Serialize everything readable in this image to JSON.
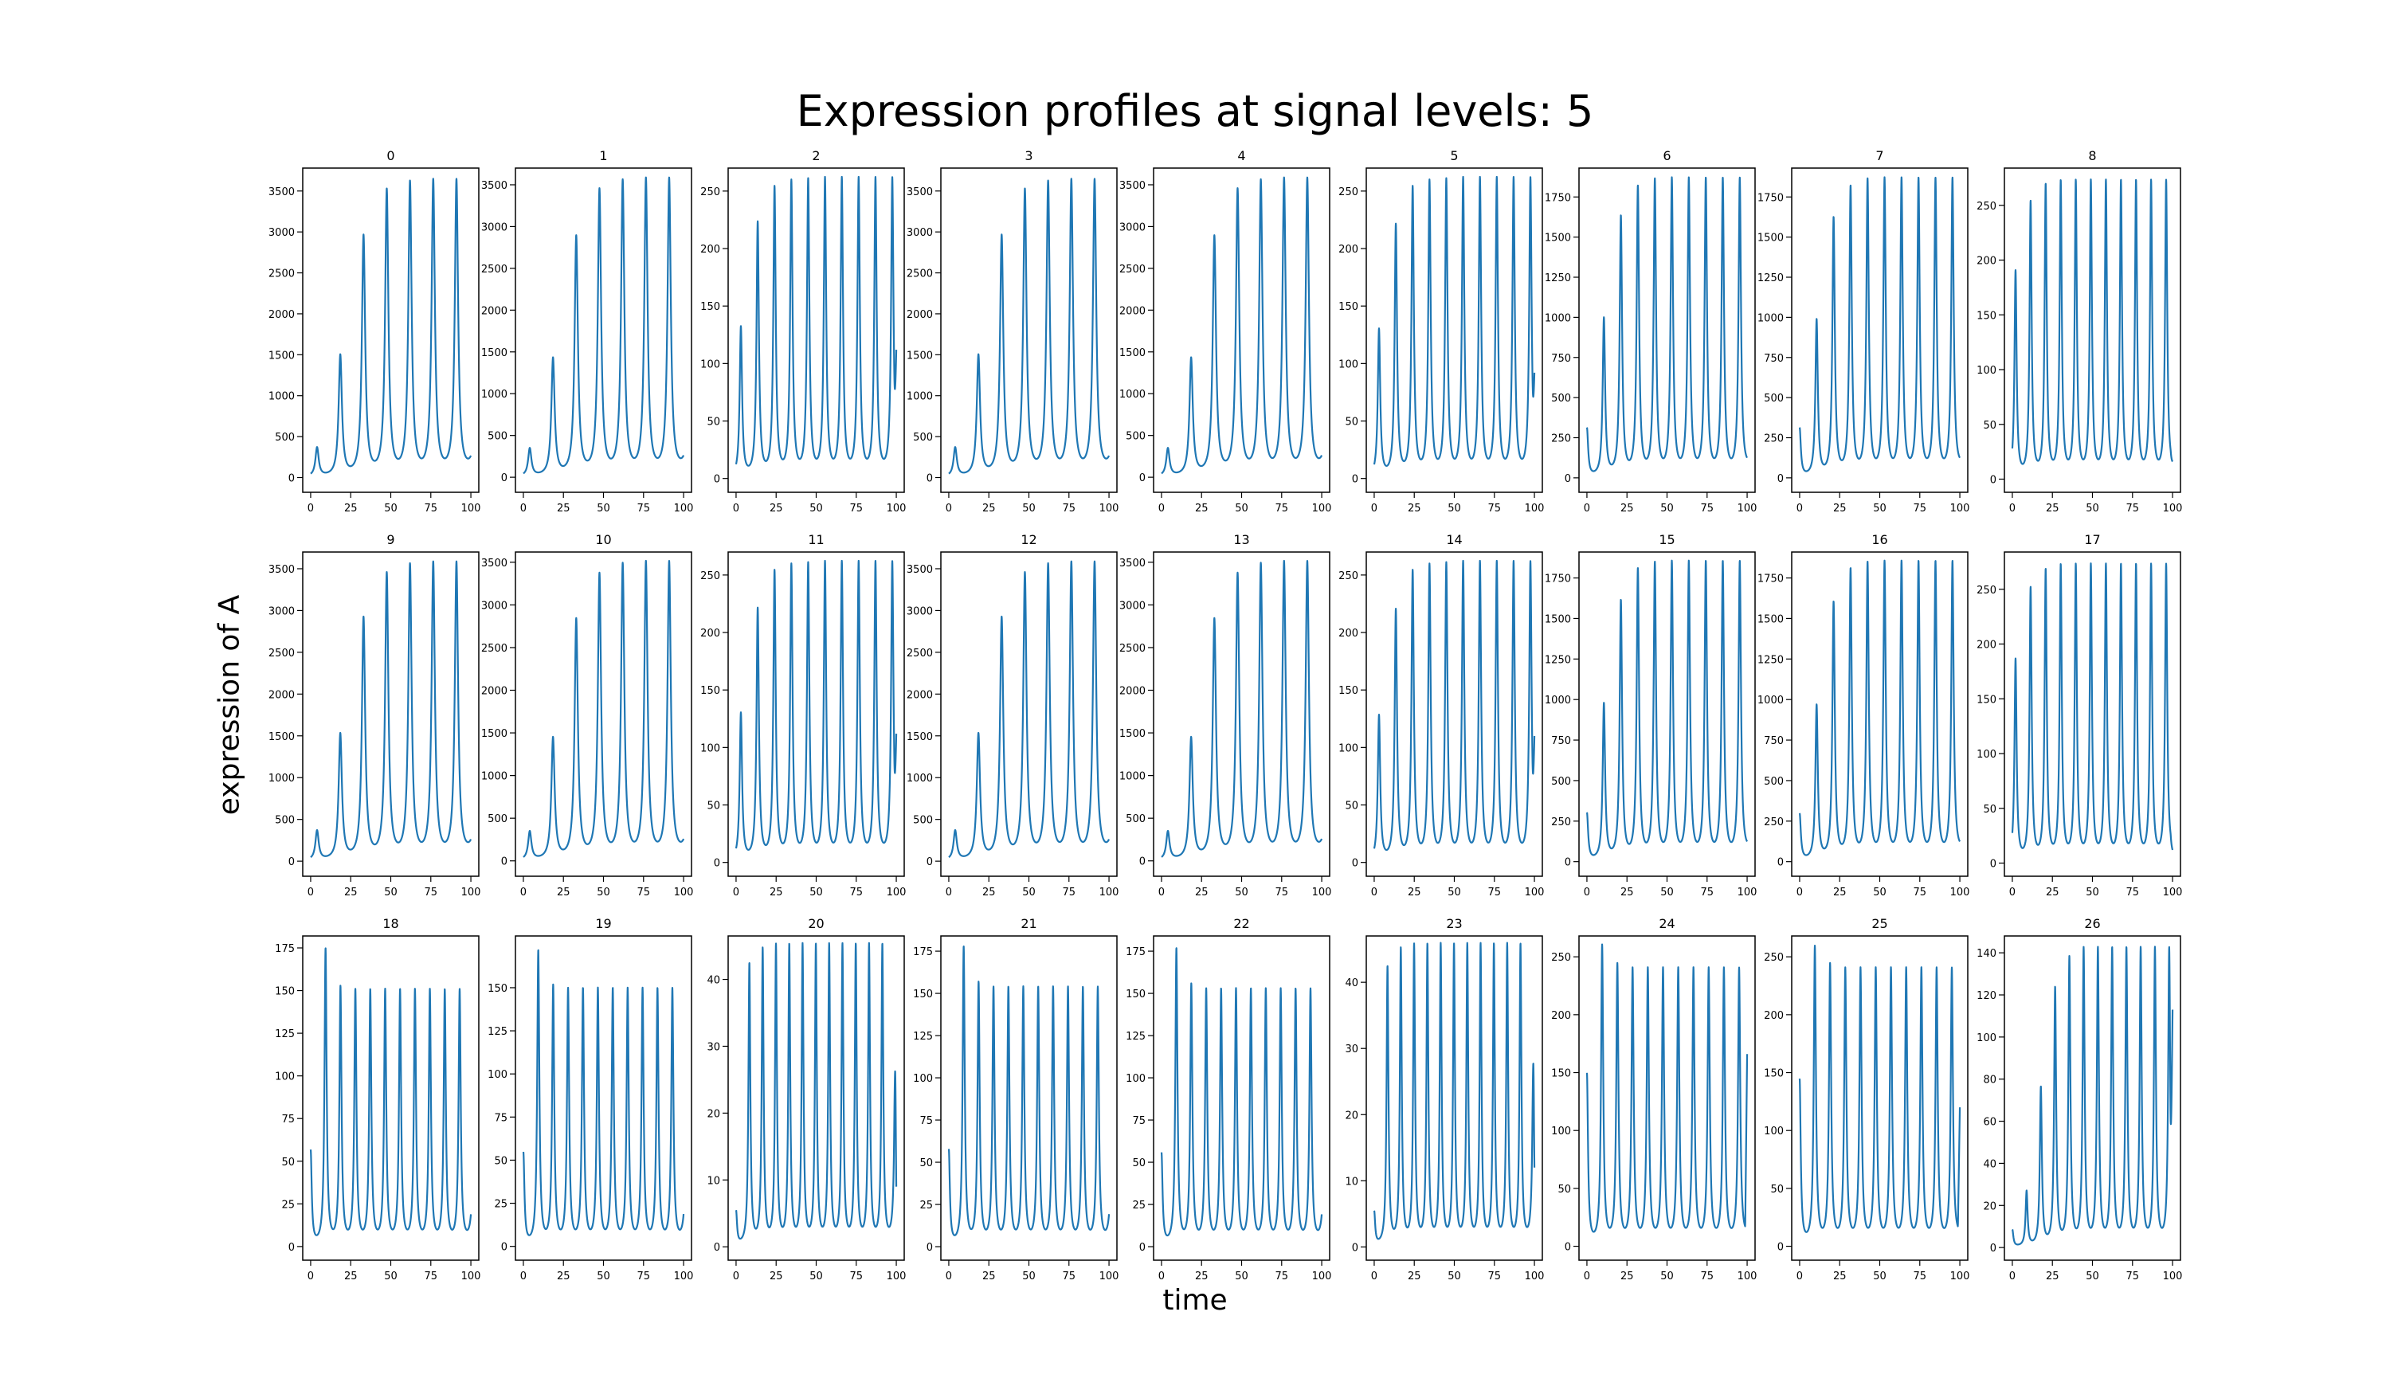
{
  "figure": {
    "title": "Expression profiles at signal levels: 5",
    "xlabel": "time",
    "ylabel": "expression of A",
    "line_color": "#1f77b4"
  },
  "chart_data": [
    {
      "type": "line",
      "title": "0",
      "xlim": [
        0,
        100
      ],
      "xticks": [
        0,
        25,
        50,
        75,
        100
      ],
      "yticks": [
        0,
        500,
        1000,
        1500,
        2000,
        2500,
        3000,
        3500
      ],
      "ylim": [
        -180,
        3780
      ],
      "period": 14.5,
      "phase": 4,
      "peaks": [
        350,
        1470,
        2920,
        3470,
        3560,
        3580,
        3580
      ],
      "tail": null
    },
    {
      "type": "line",
      "title": "1",
      "xlim": [
        0,
        100
      ],
      "xticks": [
        0,
        25,
        50,
        75,
        100
      ],
      "yticks": [
        0,
        500,
        1000,
        1500,
        2000,
        2500,
        3000,
        3500
      ],
      "ylim": [
        -180,
        3700
      ],
      "period": 14.5,
      "phase": 4,
      "peaks": [
        330,
        1400,
        2850,
        3400,
        3500,
        3520,
        3520
      ],
      "tail": null
    },
    {
      "type": "line",
      "title": "2",
      "xlim": [
        0,
        100
      ],
      "xticks": [
        0,
        25,
        50,
        75,
        100
      ],
      "yticks": [
        0,
        50,
        100,
        150,
        200,
        250
      ],
      "ylim": [
        -12,
        270
      ],
      "period": 10.5,
      "phase": 3,
      "peaks": [
        130,
        220,
        250,
        255,
        256,
        257,
        257,
        257,
        257
      ],
      "tail": 112
    },
    {
      "type": "line",
      "title": "3",
      "xlim": [
        0,
        100
      ],
      "xticks": [
        0,
        25,
        50,
        75,
        100
      ],
      "yticks": [
        0,
        500,
        1000,
        1500,
        2000,
        2500,
        3000,
        3500
      ],
      "ylim": [
        -180,
        3780
      ],
      "period": 14.5,
      "phase": 4,
      "peaks": [
        350,
        1470,
        2920,
        3470,
        3560,
        3580,
        3580
      ],
      "tail": null
    },
    {
      "type": "line",
      "title": "4",
      "xlim": [
        0,
        100
      ],
      "xticks": [
        0,
        25,
        50,
        75,
        100
      ],
      "yticks": [
        0,
        500,
        1000,
        1500,
        2000,
        2500,
        3000,
        3500
      ],
      "ylim": [
        -180,
        3700
      ],
      "period": 14.5,
      "phase": 4,
      "peaks": [
        330,
        1400,
        2850,
        3400,
        3500,
        3520,
        3520
      ],
      "tail": null
    },
    {
      "type": "line",
      "title": "5",
      "xlim": [
        0,
        100
      ],
      "xticks": [
        0,
        25,
        50,
        75,
        100
      ],
      "yticks": [
        0,
        50,
        100,
        150,
        200,
        250
      ],
      "ylim": [
        -12,
        270
      ],
      "period": 10.5,
      "phase": 3,
      "peaks": [
        128,
        218,
        250,
        255,
        256,
        257,
        257,
        257,
        257
      ],
      "tail": 92
    },
    {
      "type": "line",
      "title": "6",
      "xlim": [
        0,
        100
      ],
      "xticks": [
        0,
        25,
        50,
        75,
        100
      ],
      "yticks": [
        0,
        250,
        500,
        750,
        1000,
        1250,
        1500,
        1750
      ],
      "ylim": [
        -90,
        1930
      ],
      "period": 10.6,
      "phase": 0,
      "peaks": [
        300,
        980,
        1610,
        1790,
        1830,
        1835,
        1835,
        1835,
        1835,
        1835
      ],
      "tail": null
    },
    {
      "type": "line",
      "title": "7",
      "xlim": [
        0,
        100
      ],
      "xticks": [
        0,
        25,
        50,
        75,
        100
      ],
      "yticks": [
        0,
        250,
        500,
        750,
        1000,
        1250,
        1500,
        1750
      ],
      "ylim": [
        -90,
        1930
      ],
      "period": 10.6,
      "phase": 0,
      "peaks": [
        300,
        970,
        1600,
        1790,
        1830,
        1835,
        1835,
        1835,
        1835,
        1835
      ],
      "tail": null
    },
    {
      "type": "line",
      "title": "8",
      "xlim": [
        0,
        100
      ],
      "xticks": [
        0,
        25,
        50,
        75,
        100
      ],
      "yticks": [
        0,
        50,
        100,
        150,
        200,
        250
      ],
      "ylim": [
        -12,
        284
      ],
      "period": 9.4,
      "phase": 2,
      "peaks": [
        188,
        250,
        265,
        268,
        268,
        268,
        268,
        268,
        268,
        268
      ],
      "tail": 16
    },
    {
      "type": "line",
      "title": "9",
      "xlim": [
        0,
        100
      ],
      "xticks": [
        0,
        25,
        50,
        75,
        100
      ],
      "yticks": [
        0,
        500,
        1000,
        1500,
        2000,
        2500,
        3000,
        3500
      ],
      "ylim": [
        -180,
        3700
      ],
      "period": 14.5,
      "phase": 4,
      "peaks": [
        350,
        1500,
        2880,
        3400,
        3500,
        3520,
        3520
      ],
      "tail": null
    },
    {
      "type": "line",
      "title": "10",
      "xlim": [
        0,
        100
      ],
      "xticks": [
        0,
        25,
        50,
        75,
        100
      ],
      "yticks": [
        0,
        500,
        1000,
        1500,
        2000,
        2500,
        3000,
        3500
      ],
      "ylim": [
        -180,
        3620
      ],
      "period": 14.5,
      "phase": 4,
      "peaks": [
        330,
        1420,
        2800,
        3320,
        3430,
        3450,
        3450
      ],
      "tail": null
    },
    {
      "type": "line",
      "title": "11",
      "xlim": [
        0,
        100
      ],
      "xticks": [
        0,
        25,
        50,
        75,
        100
      ],
      "yticks": [
        0,
        50,
        100,
        150,
        200,
        250
      ],
      "ylim": [
        -12,
        270
      ],
      "period": 10.5,
      "phase": 3,
      "peaks": [
        128,
        218,
        250,
        255,
        256,
        257,
        257,
        257,
        257
      ],
      "tail": 112
    },
    {
      "type": "line",
      "title": "12",
      "xlim": [
        0,
        100
      ],
      "xticks": [
        0,
        25,
        50,
        75,
        100
      ],
      "yticks": [
        0,
        500,
        1000,
        1500,
        2000,
        2500,
        3000,
        3500
      ],
      "ylim": [
        -180,
        3700
      ],
      "period": 14.5,
      "phase": 4,
      "peaks": [
        350,
        1500,
        2880,
        3400,
        3500,
        3520,
        3520
      ],
      "tail": null
    },
    {
      "type": "line",
      "title": "13",
      "xlim": [
        0,
        100
      ],
      "xticks": [
        0,
        25,
        50,
        75,
        100
      ],
      "yticks": [
        0,
        500,
        1000,
        1500,
        2000,
        2500,
        3000,
        3500
      ],
      "ylim": [
        -180,
        3620
      ],
      "period": 14.5,
      "phase": 4,
      "peaks": [
        330,
        1420,
        2800,
        3320,
        3430,
        3450,
        3450
      ],
      "tail": null
    },
    {
      "type": "line",
      "title": "14",
      "xlim": [
        0,
        100
      ],
      "xticks": [
        0,
        25,
        50,
        75,
        100
      ],
      "yticks": [
        0,
        50,
        100,
        150,
        200,
        250
      ],
      "ylim": [
        -12,
        270
      ],
      "period": 10.5,
      "phase": 3,
      "peaks": [
        126,
        217,
        250,
        255,
        256,
        257,
        257,
        257,
        257
      ],
      "tail": 110
    },
    {
      "type": "line",
      "title": "15",
      "xlim": [
        0,
        100
      ],
      "xticks": [
        0,
        25,
        50,
        75,
        100
      ],
      "yticks": [
        0,
        250,
        500,
        750,
        1000,
        1250,
        1500,
        1750
      ],
      "ylim": [
        -90,
        1910
      ],
      "period": 10.6,
      "phase": 0,
      "peaks": [
        290,
        960,
        1590,
        1780,
        1815,
        1820,
        1820,
        1820,
        1820,
        1820
      ],
      "tail": null
    },
    {
      "type": "line",
      "title": "16",
      "xlim": [
        0,
        100
      ],
      "xticks": [
        0,
        25,
        50,
        75,
        100
      ],
      "yticks": [
        0,
        250,
        500,
        750,
        1000,
        1250,
        1500,
        1750
      ],
      "ylim": [
        -90,
        1910
      ],
      "period": 10.6,
      "phase": 0,
      "peaks": [
        285,
        950,
        1580,
        1780,
        1815,
        1820,
        1820,
        1820,
        1820,
        1820
      ],
      "tail": null
    },
    {
      "type": "line",
      "title": "17",
      "xlim": [
        0,
        100
      ],
      "xticks": [
        0,
        25,
        50,
        75,
        100
      ],
      "yticks": [
        0,
        50,
        100,
        150,
        200,
        250
      ],
      "ylim": [
        -12,
        284
      ],
      "period": 9.4,
      "phase": 2,
      "peaks": [
        184,
        248,
        264,
        268,
        268,
        268,
        268,
        268,
        268,
        268
      ],
      "tail": 12
    },
    {
      "type": "line",
      "title": "18",
      "xlim": [
        0,
        100
      ],
      "xticks": [
        0,
        25,
        50,
        75,
        100
      ],
      "yticks": [
        0,
        25,
        50,
        75,
        100,
        125,
        150,
        175
      ],
      "ylim": [
        -8,
        182
      ],
      "period": 9.3,
      "phase": 0,
      "peaks": [
        55,
        173,
        150,
        148,
        148,
        148,
        148,
        148,
        148,
        148,
        148
      ],
      "tail": null
    },
    {
      "type": "line",
      "title": "19",
      "xlim": [
        0,
        100
      ],
      "xticks": [
        0,
        25,
        50,
        75,
        100
      ],
      "yticks": [
        0,
        25,
        50,
        75,
        100,
        125,
        150
      ],
      "ylim": [
        -8,
        180
      ],
      "period": 9.3,
      "phase": 0,
      "peaks": [
        53,
        170,
        149,
        147,
        147,
        147,
        147,
        147,
        147,
        147,
        147
      ],
      "tail": null
    },
    {
      "type": "line",
      "title": "20",
      "xlim": [
        0,
        100
      ],
      "xticks": [
        0,
        25,
        50,
        75,
        100
      ],
      "yticks": [
        0,
        10,
        20,
        30,
        40
      ],
      "ylim": [
        -2,
        46.5
      ],
      "period": 8.3,
      "phase": 0,
      "peaks": [
        5,
        42,
        44,
        44.5,
        44.5,
        44.5,
        44.5,
        44.5,
        44.5,
        44.5,
        44.5,
        44.5,
        44.5
      ],
      "tail": 9
    },
    {
      "type": "line",
      "title": "21",
      "xlim": [
        0,
        100
      ],
      "xticks": [
        0,
        25,
        50,
        75,
        100
      ],
      "yticks": [
        0,
        25,
        50,
        75,
        100,
        125,
        150,
        175
      ],
      "ylim": [
        -8,
        184
      ],
      "period": 9.3,
      "phase": 0,
      "peaks": [
        56,
        176,
        154,
        151,
        151,
        151,
        151,
        151,
        151,
        151,
        151
      ],
      "tail": null
    },
    {
      "type": "line",
      "title": "22",
      "xlim": [
        0,
        100
      ],
      "xticks": [
        0,
        25,
        50,
        75,
        100
      ],
      "yticks": [
        0,
        25,
        50,
        75,
        100,
        125,
        150,
        175
      ],
      "ylim": [
        -8,
        184
      ],
      "period": 9.3,
      "phase": 0,
      "peaks": [
        54,
        175,
        153,
        150,
        150,
        150,
        150,
        150,
        150,
        150,
        150
      ],
      "tail": null
    },
    {
      "type": "line",
      "title": "23",
      "xlim": [
        0,
        100
      ],
      "xticks": [
        0,
        25,
        50,
        75,
        100
      ],
      "yticks": [
        0,
        10,
        20,
        30,
        40
      ],
      "ylim": [
        -2,
        47
      ],
      "period": 8.3,
      "phase": 0,
      "peaks": [
        5,
        42,
        44.5,
        45,
        45,
        45,
        45,
        45,
        45,
        45,
        45,
        45,
        45
      ],
      "tail": 12
    },
    {
      "type": "line",
      "title": "24",
      "xlim": [
        0,
        100
      ],
      "xticks": [
        0,
        25,
        50,
        75,
        100
      ],
      "yticks": [
        0,
        50,
        100,
        150,
        200,
        250
      ],
      "ylim": [
        -12,
        268
      ],
      "period": 9.5,
      "phase": 0,
      "peaks": [
        147,
        257,
        240,
        236,
        236,
        236,
        236,
        236,
        236,
        236,
        236
      ],
      "tail": 166
    },
    {
      "type": "line",
      "title": "25",
      "xlim": [
        0,
        100
      ],
      "xticks": [
        0,
        25,
        50,
        75,
        100
      ],
      "yticks": [
        0,
        50,
        100,
        150,
        200,
        250
      ],
      "ylim": [
        -12,
        268
      ],
      "period": 9.5,
      "phase": 0,
      "peaks": [
        142,
        256,
        240,
        236,
        236,
        236,
        236,
        236,
        236,
        236,
        236
      ],
      "tail": 120
    },
    {
      "type": "line",
      "title": "26",
      "xlim": [
        0,
        100
      ],
      "xticks": [
        0,
        25,
        50,
        75,
        100
      ],
      "yticks": [
        0,
        20,
        40,
        60,
        80,
        100,
        120,
        140
      ],
      "ylim": [
        -6,
        148
      ],
      "period": 8.9,
      "phase": 0,
      "peaks": [
        8,
        26,
        75,
        122,
        136,
        140,
        140,
        140,
        140,
        140,
        140,
        140
      ],
      "tail": 113
    }
  ]
}
